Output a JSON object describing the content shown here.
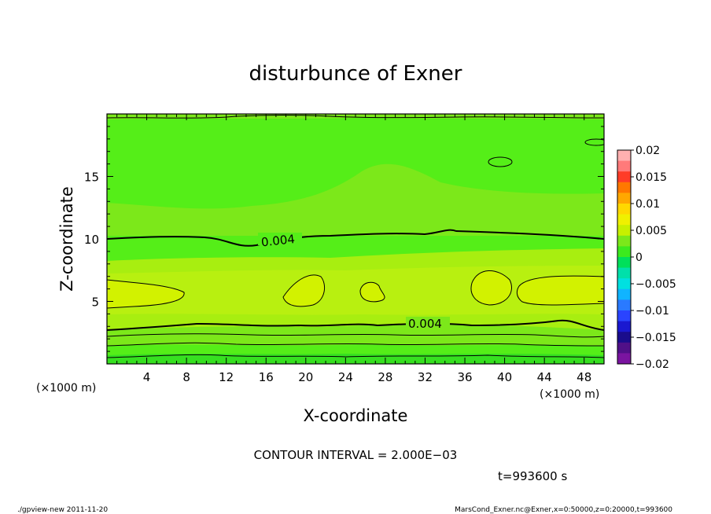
{
  "chart_data": {
    "type": "heatmap",
    "title": "disturbunce of Exner",
    "xlabel": "X-coordinate",
    "ylabel": "Z-coordinate",
    "x_unit_label_left": "(×1000 m)",
    "x_unit_label_right": "(×1000 m)",
    "xlim": [
      0,
      50
    ],
    "ylim": [
      0,
      20
    ],
    "x_ticks": [
      "4",
      "8",
      "12",
      "16",
      "20",
      "24",
      "28",
      "32",
      "36",
      "40",
      "44",
      "48"
    ],
    "y_ticks": [
      "5",
      "10",
      "15"
    ],
    "contour_labels": [
      "0.004",
      "0.004"
    ],
    "colorbar": {
      "ticks": [
        "0.02",
        "0.015",
        "0.01",
        "0.005",
        "0",
        "−0.005",
        "−0.01",
        "−0.015",
        "−0.02"
      ],
      "range": [
        -0.02,
        0.02
      ]
    },
    "contour_interval_text": "CONTOUR INTERVAL = 2.000E−03",
    "time_text": "t=993600 s",
    "colors": {
      "field_high": "#c8f000",
      "field_mid": "#a8ee10",
      "field_low": "#7ce81a",
      "field_base": "#55ee18",
      "field_edge": "#36e020"
    }
  },
  "footer": {
    "left": "./gpview-new   2011-11-20",
    "right": "MarsCond_Exner.nc@Exner,x=0:50000,z=0:20000,t=993600"
  }
}
